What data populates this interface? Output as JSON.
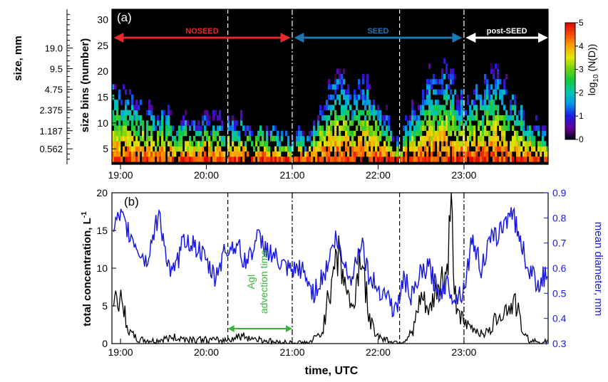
{
  "chart_data": [
    {
      "panel_label": "(a)",
      "type": "heatmap",
      "xlabel": "",
      "ylabel": "size bins (number)",
      "y2label": "size, mm",
      "x_ticks": [
        "19:00",
        "20:00",
        "21:00",
        "22:00",
        "23:00"
      ],
      "x_tick_hours": [
        19,
        20,
        21,
        22,
        23
      ],
      "xlim_hours": [
        18.9,
        23.98
      ],
      "ylim": [
        2,
        32
      ],
      "y_ticks": [
        5,
        10,
        15,
        20,
        25,
        30
      ],
      "size_ticks": [
        {
          "label": "0.562",
          "bin": 5
        },
        {
          "label": "1.187",
          "bin": 8.5
        },
        {
          "label": "2.375",
          "bin": 12.5
        },
        {
          "label": "4.75",
          "bin": 16.5
        },
        {
          "label": "9.5",
          "bin": 20.5
        },
        {
          "label": "19.0",
          "bin": 24.5
        }
      ],
      "colorbar": {
        "label": "log10 (N(D))",
        "label_main": "log",
        "label_sub": "10",
        "label_rest": " (N(D))",
        "ticks": [
          0,
          1,
          2,
          3,
          4,
          5
        ],
        "min": 0,
        "max": 5
      },
      "background_color": "#000000",
      "periods": [
        {
          "label": "NOSEED",
          "start_hour": 18.92,
          "end_hour": 20.98,
          "color": "#e8282a"
        },
        {
          "label": "SEED",
          "start_hour": 21.02,
          "end_hour": 22.98,
          "color": "#1e78b4"
        },
        {
          "label": "post-SEED",
          "start_hour": 23.02,
          "end_hour": 23.98,
          "color": "#ffffff"
        }
      ],
      "dashed_lines_hours": [
        20.25,
        22.25
      ],
      "dashdot_lines_hours": [
        21.0,
        23.0
      ],
      "max_bin_profile": {
        "hours": [
          18.95,
          19.1,
          19.3,
          19.6,
          20.0,
          20.4,
          20.8,
          21.0,
          21.2,
          21.4,
          21.55,
          21.7,
          21.9,
          22.1,
          22.25,
          22.4,
          22.6,
          22.8,
          23.0,
          23.2,
          23.4,
          23.6,
          23.8,
          23.97
        ],
        "max_bin": [
          18,
          16,
          13,
          11,
          10,
          10,
          9,
          7,
          7,
          16,
          21,
          16,
          17,
          11,
          6,
          13,
          19,
          20,
          14,
          17,
          20,
          14,
          10,
          8
        ]
      }
    },
    {
      "panel_label": "(b)",
      "type": "line",
      "xlabel": "time, UTC",
      "ylabel": "total concentration, L",
      "ylabel_sup": "-1",
      "y2label": "mean diameter, mm",
      "x_ticks": [
        "19:00",
        "20:00",
        "21:00",
        "22:00",
        "23:00"
      ],
      "x_tick_hours": [
        19,
        20,
        21,
        22,
        23
      ],
      "xlim_hours": [
        18.9,
        23.98
      ],
      "ylim": [
        0,
        20
      ],
      "y_ticks": [
        0,
        5,
        10,
        15,
        20
      ],
      "y2lim": [
        0.3,
        0.9
      ],
      "y2_ticks": [
        "0.3",
        "0.4",
        "0.5",
        "0.6",
        "0.7",
        "0.8",
        "0.9"
      ],
      "dashed_lines_hours": [
        20.25,
        22.25
      ],
      "dashdot_lines_hours": [
        21.0,
        23.0
      ],
      "annotation": {
        "line1": "AgI",
        "line2": "advection time",
        "start_hour": 20.25,
        "end_hour": 21.0,
        "color": "#3cb43c"
      },
      "series": [
        {
          "name": "total concentration",
          "color": "#000000",
          "axis": "left",
          "x_hours": [
            18.92,
            19.0,
            19.05,
            19.1,
            19.2,
            19.4,
            19.6,
            19.8,
            20.0,
            20.2,
            20.4,
            20.6,
            20.8,
            21.0,
            21.2,
            21.35,
            21.45,
            21.5,
            21.55,
            21.6,
            21.7,
            21.8,
            21.9,
            22.0,
            22.1,
            22.2,
            22.3,
            22.4,
            22.5,
            22.6,
            22.7,
            22.8,
            22.85,
            22.9,
            23.0,
            23.1,
            23.2,
            23.3,
            23.4,
            23.5,
            23.6,
            23.7,
            23.8,
            23.97
          ],
          "values": [
            6.5,
            5.5,
            4.0,
            1.5,
            0.5,
            0.3,
            0.8,
            0.6,
            0.5,
            0.4,
            1.0,
            0.6,
            0.2,
            0.1,
            0.1,
            1.5,
            8.0,
            13.0,
            11.0,
            9.0,
            4.0,
            12.5,
            3.0,
            1.0,
            0.5,
            0.2,
            0.3,
            1.5,
            6.0,
            4.0,
            8.0,
            9.0,
            17.5,
            6.0,
            2.5,
            2.0,
            1.5,
            1.5,
            4.0,
            4.5,
            5.5,
            1.0,
            0.3,
            0.2
          ]
        },
        {
          "name": "mean diameter",
          "color": "#1a1ae6",
          "axis": "right",
          "x_hours": [
            18.92,
            19.0,
            19.1,
            19.2,
            19.3,
            19.45,
            19.55,
            19.6,
            19.75,
            19.9,
            20.0,
            20.1,
            20.2,
            20.35,
            20.45,
            20.6,
            20.75,
            20.9,
            21.0,
            21.1,
            21.25,
            21.4,
            21.5,
            21.6,
            21.7,
            21.8,
            21.9,
            22.0,
            22.1,
            22.2,
            22.3,
            22.4,
            22.5,
            22.6,
            22.7,
            22.8,
            22.9,
            23.0,
            23.1,
            23.2,
            23.3,
            23.45,
            23.55,
            23.65,
            23.75,
            23.85,
            23.97
          ],
          "values": [
            0.76,
            0.8,
            0.74,
            0.68,
            0.62,
            0.82,
            0.62,
            0.56,
            0.72,
            0.68,
            0.62,
            0.56,
            0.66,
            0.7,
            0.62,
            0.72,
            0.66,
            0.6,
            0.58,
            0.6,
            0.5,
            0.6,
            0.72,
            0.62,
            0.56,
            0.72,
            0.56,
            0.52,
            0.5,
            0.42,
            0.56,
            0.48,
            0.58,
            0.6,
            0.5,
            0.54,
            0.48,
            0.52,
            0.72,
            0.6,
            0.7,
            0.76,
            0.84,
            0.72,
            0.6,
            0.54,
            0.58
          ]
        }
      ]
    }
  ]
}
